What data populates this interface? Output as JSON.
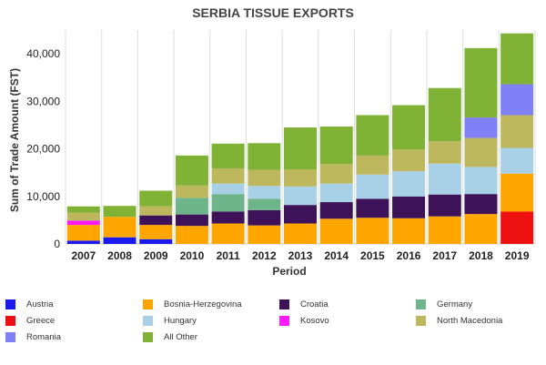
{
  "chart_data": {
    "type": "bar",
    "stacked": true,
    "title": "SERBIA TISSUE EXPORTS",
    "xlabel": "Period",
    "ylabel": "Sum of Trade Amount (FST)",
    "ylim": [
      0,
      45000
    ],
    "yticks": [
      "0",
      "10,000",
      "20,000",
      "30,000",
      "40,000"
    ],
    "ytick_values": [
      0,
      10000,
      20000,
      30000,
      40000
    ],
    "grid": "vertical",
    "legend_position": "bottom",
    "categories": [
      "2007",
      "2008",
      "2009",
      "2010",
      "2011",
      "2012",
      "2013",
      "2014",
      "2015",
      "2016",
      "2017",
      "2018",
      "2019"
    ],
    "series": [
      {
        "name": "Austria",
        "color": "#1a1aee",
        "values": [
          700,
          1400,
          1000,
          0,
          0,
          0,
          0,
          0,
          0,
          0,
          0,
          0,
          0
        ]
      },
      {
        "name": "Greece",
        "color": "#ee1111",
        "values": [
          0,
          0,
          0,
          0,
          0,
          0,
          0,
          0,
          0,
          0,
          0,
          0,
          6800
        ]
      },
      {
        "name": "Romania",
        "color": "#8080f7",
        "values": [
          0,
          0,
          0,
          0,
          0,
          0,
          0,
          0,
          0,
          0,
          0,
          4300,
          6500
        ]
      },
      {
        "name": "Bosnia-Herzegovina",
        "color": "#ffa500",
        "values": [
          3300,
          4300,
          3000,
          3800,
          4300,
          3900,
          4300,
          5300,
          5500,
          5400,
          5800,
          6300,
          8000
        ]
      },
      {
        "name": "Hungary",
        "color": "#a8d0e6",
        "values": [
          0,
          0,
          0,
          0,
          2200,
          2700,
          3900,
          3900,
          5100,
          5300,
          6500,
          5700,
          5400
        ]
      },
      {
        "name": "All Other",
        "color": "#7fb235",
        "values": [
          1300,
          2300,
          3300,
          6300,
          5200,
          5600,
          8800,
          7900,
          8500,
          9300,
          11200,
          14600,
          10700
        ]
      },
      {
        "name": "Croatia",
        "color": "#3d1259",
        "values": [
          0,
          0,
          2000,
          2400,
          2500,
          3200,
          3900,
          3500,
          4000,
          4600,
          4600,
          4200,
          0
        ]
      },
      {
        "name": "Kosovo",
        "color": "#ff19ff",
        "values": [
          900,
          0,
          0,
          0,
          0,
          0,
          0,
          0,
          0,
          0,
          0,
          0,
          0
        ]
      },
      {
        "name": "Germany",
        "color": "#6fb58c",
        "values": [
          0,
          0,
          0,
          3500,
          3700,
          2400,
          0,
          0,
          0,
          0,
          0,
          0,
          0
        ]
      },
      {
        "name": "North Macedonia",
        "color": "#bdb85e",
        "values": [
          1700,
          0,
          1900,
          2600,
          3200,
          3400,
          3600,
          4100,
          4000,
          4600,
          4700,
          6100,
          6900
        ]
      }
    ],
    "stack_order": [
      "Austria",
      "Greece",
      "Bosnia-Herzegovina",
      "Croatia",
      "Kosovo",
      "Germany",
      "Hungary",
      "North Macedonia",
      "Romania",
      "All Other"
    ]
  }
}
